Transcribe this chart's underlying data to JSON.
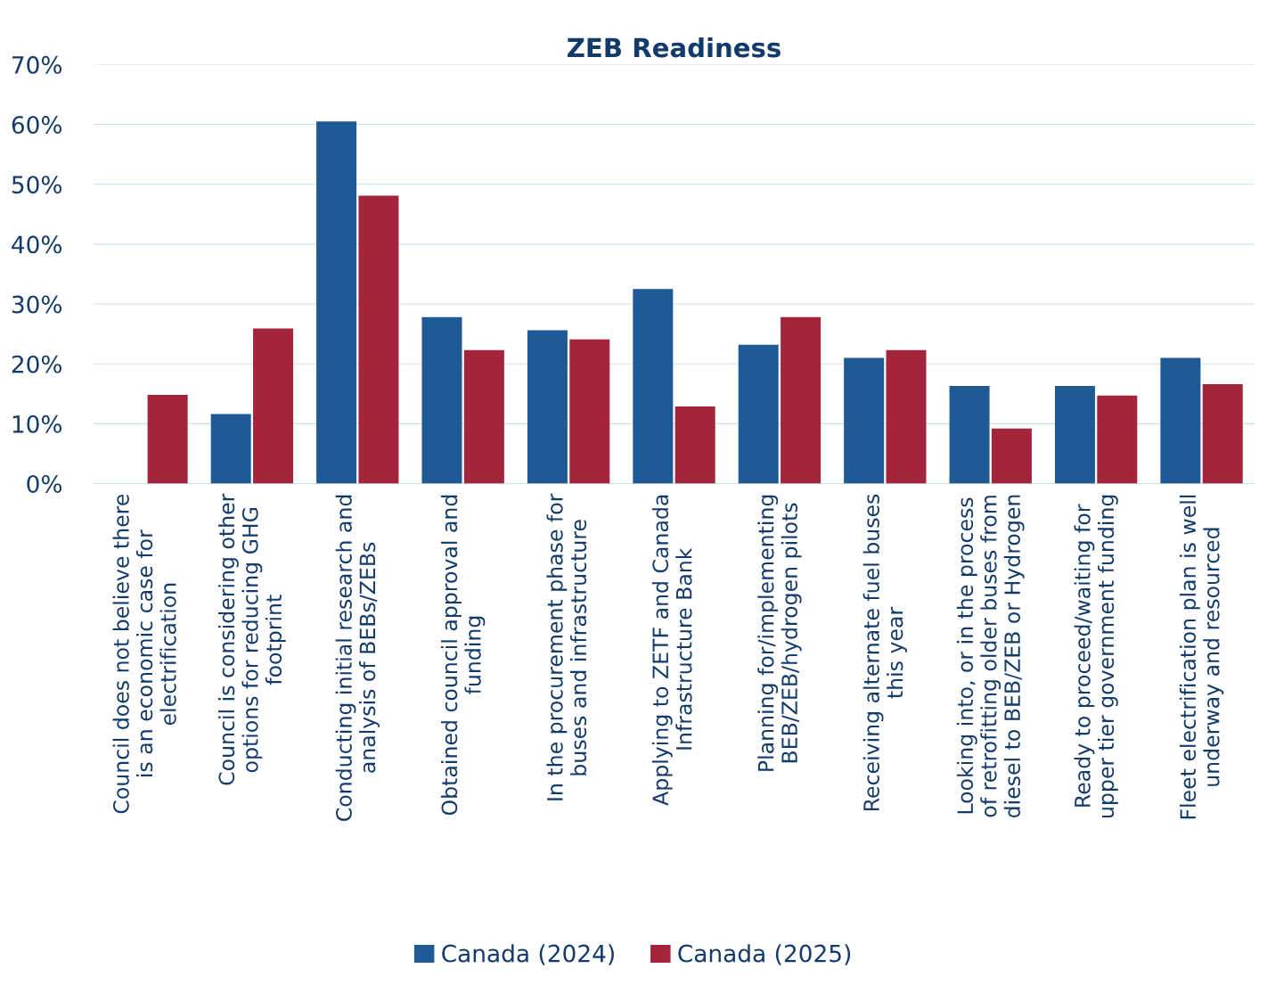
{
  "chart_data": {
    "type": "bar",
    "title": "ZEB Readiness",
    "categories": [
      "Council does not believe there\nis an economic case for\nelectrification",
      "Council is considering other\noptions for reducing GHG\nfootprint",
      "Conducting initial research and\nanalysis of BEBs/ZEBs",
      "Obtained council approval and\nfunding",
      "In the procurement phase for\nbuses and infrastructure",
      "Applying to ZETF and Canada\nInfrastructure Bank",
      "Planning for/implementing\nBEB/ZEB/hydrogen pilots",
      "Receiving alternate fuel buses\nthis year",
      "Looking into, or in the process\nof retrofitting older buses from\ndiesel to BEB/ZEB or Hydrogen",
      "Ready to proceed/waiting for\nupper tier government funding",
      "Fleet electrification plan is well\nunderway and resourced"
    ],
    "series": [
      {
        "name": "Canada (2024)",
        "color": "#1f5a96",
        "values": [
          0,
          11.6,
          60.5,
          27.8,
          25.6,
          32.5,
          23.2,
          21.0,
          16.3,
          16.3,
          21.0
        ]
      },
      {
        "name": "Canada (2025)",
        "color": "#a3243b",
        "values": [
          14.8,
          25.9,
          48.1,
          22.3,
          24.1,
          12.9,
          27.8,
          22.3,
          9.2,
          14.7,
          16.6
        ]
      }
    ],
    "ylim": [
      0,
      70
    ],
    "yticks": [
      {
        "value": 0,
        "label": "0%"
      },
      {
        "value": 10,
        "label": "10%"
      },
      {
        "value": 20,
        "label": "20%"
      },
      {
        "value": 30,
        "label": "30%"
      },
      {
        "value": 40,
        "label": "40%"
      },
      {
        "value": 50,
        "label": "50%"
      },
      {
        "value": 60,
        "label": "60%"
      },
      {
        "value": 70,
        "label": "70%"
      }
    ],
    "grid": "y",
    "legend": "bottom"
  }
}
